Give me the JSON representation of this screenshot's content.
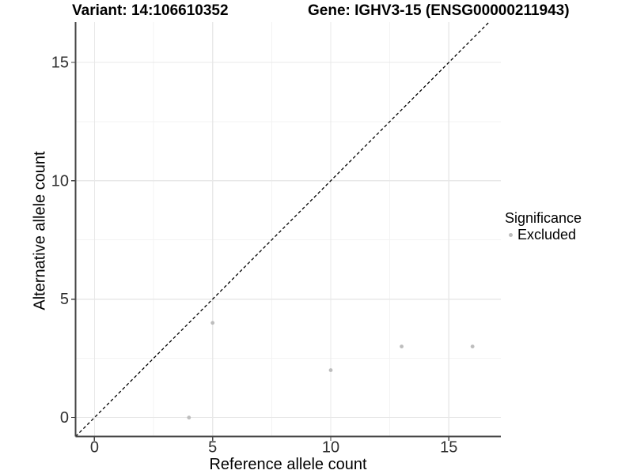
{
  "figure": {
    "title_variant": "Variant: 14:106610352",
    "title_gene": "Gene: IGHV3-15 (ENSG00000211943)"
  },
  "chart_data": {
    "type": "scatter",
    "title": "Variant: 14:106610352   Gene: IGHV3-15 (ENSG00000211943)",
    "xlabel": "Reference allele count",
    "ylabel": "Alternative allele count",
    "xlim": [
      -0.8,
      17.2
    ],
    "ylim": [
      -0.8,
      16.7
    ],
    "x_ticks": [
      0,
      5,
      10,
      15
    ],
    "y_ticks": [
      0,
      5,
      10,
      15
    ],
    "x_minor_gridlines": [
      2.5,
      7.5,
      12.5
    ],
    "y_minor_gridlines": [
      2.5,
      7.5,
      12.5
    ],
    "grid": "major and minor, light gray on white",
    "reference_line": {
      "type": "identity y=x",
      "slope": 1,
      "intercept": 0,
      "style": "dashed",
      "color": "#000000"
    },
    "series": [
      {
        "name": "Excluded",
        "marker": "circle",
        "color": "#bdbdbd",
        "points": [
          [
            4,
            0
          ],
          [
            5,
            4
          ],
          [
            10,
            2
          ],
          [
            13,
            3
          ],
          [
            16,
            3
          ]
        ]
      }
    ],
    "legend": {
      "title": "Significance",
      "position": "right",
      "entries": [
        {
          "label": "Excluded",
          "color": "#bdbdbd"
        }
      ]
    }
  },
  "colors": {
    "background": "#ffffff",
    "grid_major": "#e8e8e8",
    "grid_minor": "#f3f3f3",
    "axis_line": "#464646",
    "tick_mark": "#464646",
    "tick_text": "#303030",
    "point": "#bdbdbd",
    "dashed_line": "#000000"
  }
}
